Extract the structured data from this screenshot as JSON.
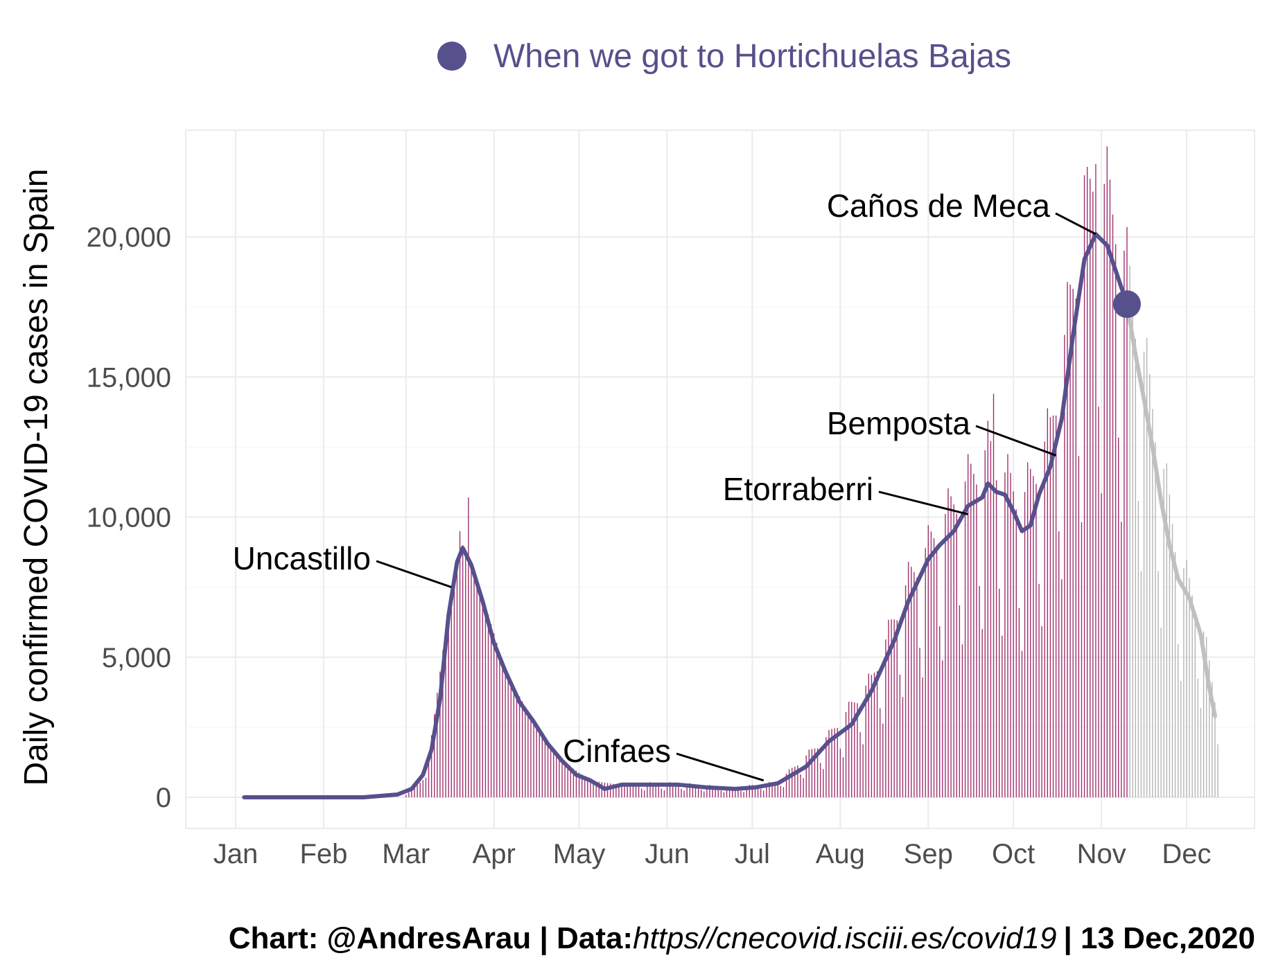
{
  "chart_data": {
    "type": "bar",
    "ylabel": "Daily confirmed COVID-19 cases in Spain",
    "ylim": [
      -1000,
      23800
    ],
    "y_ticks": [
      "0",
      "5,000",
      "10,000",
      "15,000",
      "20,000"
    ],
    "y_tick_values": [
      0,
      5000,
      10000,
      15000,
      20000
    ],
    "x_domain": [
      "2020-01-01",
      "2020-12-15"
    ],
    "x_ticks": [
      "Jan",
      "Feb",
      "Mar",
      "Apr",
      "May",
      "Jun",
      "Jul",
      "Aug",
      "Sep",
      "Oct",
      "Nov",
      "Dec"
    ],
    "x_tick_dates": [
      "2020-01-01",
      "2020-02-01",
      "2020-03-01",
      "2020-04-01",
      "2020-05-01",
      "2020-06-01",
      "2020-07-01",
      "2020-08-01",
      "2020-09-01",
      "2020-10-01",
      "2020-11-01",
      "2020-12-01"
    ],
    "grid": true,
    "legend": {
      "position": "top",
      "entries": [
        {
          "label": "When we got to Hortichuelas Bajas",
          "marker": "point",
          "color": "#56508c"
        }
      ]
    },
    "series": [
      {
        "name": "When we got to Hortichuelas Bajas",
        "role": "7-day average, reached period",
        "color": "#56508c",
        "points": [
          [
            "2020-01-04",
            0
          ],
          [
            "2020-02-15",
            0
          ],
          [
            "2020-02-27",
            100
          ],
          [
            "2020-03-03",
            300
          ],
          [
            "2020-03-07",
            800
          ],
          [
            "2020-03-10",
            1700
          ],
          [
            "2020-03-13",
            3500
          ],
          [
            "2020-03-16",
            6500
          ],
          [
            "2020-03-19",
            8400
          ],
          [
            "2020-03-21",
            8900
          ],
          [
            "2020-03-24",
            8300
          ],
          [
            "2020-03-28",
            7000
          ],
          [
            "2020-04-01",
            5500
          ],
          [
            "2020-04-05",
            4500
          ],
          [
            "2020-04-10",
            3400
          ],
          [
            "2020-04-15",
            2700
          ],
          [
            "2020-04-20",
            1900
          ],
          [
            "2020-04-25",
            1300
          ],
          [
            "2020-04-30",
            800
          ],
          [
            "2020-05-05",
            600
          ],
          [
            "2020-05-10",
            300
          ],
          [
            "2020-05-16",
            450
          ],
          [
            "2020-05-25",
            450
          ],
          [
            "2020-06-05",
            450
          ],
          [
            "2020-06-15",
            350
          ],
          [
            "2020-06-25",
            300
          ],
          [
            "2020-07-02",
            350
          ],
          [
            "2020-07-10",
            500
          ],
          [
            "2020-07-20",
            1100
          ],
          [
            "2020-07-28",
            2000
          ],
          [
            "2020-08-05",
            2600
          ],
          [
            "2020-08-12",
            3800
          ],
          [
            "2020-08-20",
            5600
          ],
          [
            "2020-08-25",
            7000
          ],
          [
            "2020-09-01",
            8500
          ],
          [
            "2020-09-05",
            9000
          ],
          [
            "2020-09-10",
            9500
          ],
          [
            "2020-09-15",
            10400
          ],
          [
            "2020-09-20",
            10700
          ],
          [
            "2020-09-22",
            11200
          ],
          [
            "2020-09-25",
            10900
          ],
          [
            "2020-09-28",
            10800
          ],
          [
            "2020-10-01",
            10200
          ],
          [
            "2020-10-04",
            9500
          ],
          [
            "2020-10-07",
            9700
          ],
          [
            "2020-10-10",
            10800
          ],
          [
            "2020-10-14",
            11800
          ],
          [
            "2020-10-18",
            13500
          ],
          [
            "2020-10-22",
            16500
          ],
          [
            "2020-10-26",
            19200
          ],
          [
            "2020-10-30",
            20100
          ],
          [
            "2020-11-03",
            19700
          ],
          [
            "2020-11-06",
            18800
          ],
          [
            "2020-11-10",
            17600
          ]
        ]
      },
      {
        "role": "7-day average, after reaching",
        "color": "#c0c0c0",
        "points": [
          [
            "2020-11-10",
            17600
          ],
          [
            "2020-11-13",
            15800
          ],
          [
            "2020-11-16",
            14200
          ],
          [
            "2020-11-19",
            12500
          ],
          [
            "2020-11-22",
            10600
          ],
          [
            "2020-11-25",
            9000
          ],
          [
            "2020-11-28",
            7800
          ],
          [
            "2020-12-02",
            7100
          ],
          [
            "2020-12-06",
            5800
          ],
          [
            "2020-12-09",
            3900
          ],
          [
            "2020-12-11",
            2900
          ]
        ]
      }
    ],
    "highlight_point": {
      "date": "2020-11-10",
      "value": 17600,
      "color": "#56508c"
    },
    "bars": {
      "color_reached": "#a0306f",
      "color_after": "#b5b5b5",
      "split_date": "2020-11-10",
      "weekly_profile": [
        [
          "2020-03-01",
          80
        ],
        [
          "2020-03-08",
          700
        ],
        [
          "2020-03-15",
          6000
        ],
        [
          "2020-03-21",
          9000
        ],
        [
          "2020-03-28",
          7200
        ],
        [
          "2020-04-05",
          4500
        ],
        [
          "2020-04-15",
          2700
        ],
        [
          "2020-04-25",
          1300
        ],
        [
          "2020-05-05",
          600
        ],
        [
          "2020-05-15",
          450
        ],
        [
          "2020-06-05",
          450
        ],
        [
          "2020-06-25",
          300
        ],
        [
          "2020-07-10",
          500
        ],
        [
          "2020-07-28",
          2000
        ],
        [
          "2020-08-12",
          3800
        ],
        [
          "2020-08-25",
          7000
        ],
        [
          "2020-09-10",
          9500
        ],
        [
          "2020-09-22",
          11200
        ],
        [
          "2020-10-04",
          9500
        ],
        [
          "2020-10-14",
          11800
        ],
        [
          "2020-10-22",
          16500
        ],
        [
          "2020-10-30",
          20100
        ],
        [
          "2020-11-06",
          18800
        ],
        [
          "2020-11-16",
          14200
        ],
        [
          "2020-11-28",
          7800
        ],
        [
          "2020-12-06",
          5800
        ],
        [
          "2020-12-12",
          2700
        ]
      ],
      "peak_days": [
        [
          "2020-03-20",
          9500
        ],
        [
          "2020-03-23",
          10700
        ],
        [
          "2020-09-24",
          14400
        ],
        [
          "2020-10-26",
          22200
        ],
        [
          "2020-10-30",
          22600
        ],
        [
          "2020-11-05",
          20800
        ]
      ]
    },
    "annotations": [
      {
        "label": "Uncastillo",
        "date": "2020-03-17",
        "value": 7500
      },
      {
        "label": "Cinfaes",
        "date": "2020-07-05",
        "value": 600
      },
      {
        "label": "Etorraberri",
        "date": "2020-09-15",
        "value": 10100
      },
      {
        "label": "Bemposta",
        "date": "2020-10-16",
        "value": 12200
      },
      {
        "label": "Caños de Meca",
        "date": "2020-10-30",
        "value": 20100
      }
    ],
    "caption": {
      "part1": "Chart: @AndresArau | Data:",
      "url": "https//cnecovid.isciii.es/covid19",
      "part2": "| 13 Dec,2020"
    }
  }
}
